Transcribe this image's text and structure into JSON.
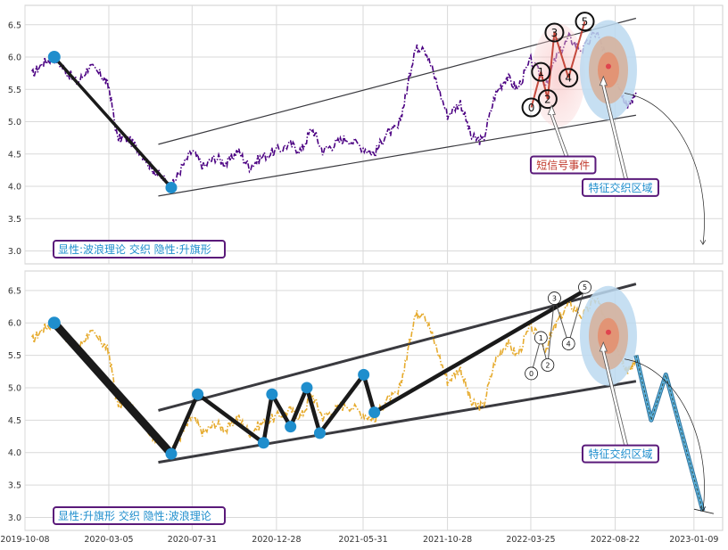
{
  "chart_data": [
    {
      "type": "line",
      "panel": "top",
      "annotation_box": "显性:波浪理论 交织 隐性:升旗形",
      "ylim": [
        2.8,
        6.8
      ],
      "ytick_labels": [
        "3.0",
        "3.5",
        "4.0",
        "4.5",
        "5.0",
        "5.5",
        "6.0",
        "6.5"
      ],
      "xlim": [
        "2019-10-08",
        "2023-03-01"
      ],
      "price_series": {
        "color": "#4b0082",
        "style": "dash-dot",
        "points": [
          [
            "2019-10-20",
            5.72
          ],
          [
            "2019-11-10",
            5.92
          ],
          [
            "2019-11-29",
            6.0
          ],
          [
            "2019-12-20",
            5.78
          ],
          [
            "2020-01-10",
            5.6
          ],
          [
            "2020-01-30",
            5.86
          ],
          [
            "2020-02-20",
            5.72
          ],
          [
            "2020-03-05",
            5.55
          ],
          [
            "2020-03-20",
            4.75
          ],
          [
            "2020-04-10",
            4.72
          ],
          [
            "2020-04-30",
            4.55
          ],
          [
            "2020-05-20",
            4.28
          ],
          [
            "2020-06-10",
            4.12
          ],
          [
            "2020-06-24",
            3.98
          ],
          [
            "2020-07-10",
            4.25
          ],
          [
            "2020-07-31",
            4.55
          ],
          [
            "2020-08-20",
            4.3
          ],
          [
            "2020-09-10",
            4.45
          ],
          [
            "2020-10-01",
            4.35
          ],
          [
            "2020-10-20",
            4.55
          ],
          [
            "2020-11-10",
            4.3
          ],
          [
            "2020-12-01",
            4.45
          ],
          [
            "2020-12-28",
            4.55
          ],
          [
            "2021-01-20",
            4.65
          ],
          [
            "2021-02-10",
            4.55
          ],
          [
            "2021-03-01",
            4.9
          ],
          [
            "2021-03-20",
            4.55
          ],
          [
            "2021-04-10",
            4.65
          ],
          [
            "2021-05-01",
            4.75
          ],
          [
            "2021-05-31",
            4.6
          ],
          [
            "2021-06-20",
            4.5
          ],
          [
            "2021-07-10",
            4.8
          ],
          [
            "2021-08-01",
            4.9
          ],
          [
            "2021-08-15",
            5.4
          ],
          [
            "2021-08-30",
            6.1
          ],
          [
            "2021-09-15",
            6.2
          ],
          [
            "2021-10-05",
            5.7
          ],
          [
            "2021-10-28",
            5.1
          ],
          [
            "2021-11-20",
            5.3
          ],
          [
            "2021-12-10",
            4.75
          ],
          [
            "2021-12-30",
            4.7
          ],
          [
            "2022-01-20",
            5.4
          ],
          [
            "2022-02-10",
            5.7
          ],
          [
            "2022-03-01",
            5.5
          ],
          [
            "2022-03-25",
            5.95
          ],
          [
            "2022-04-20",
            5.6
          ],
          [
            "2022-05-10",
            6.0
          ],
          [
            "2022-06-01",
            6.3
          ],
          [
            "2022-06-25",
            6.1
          ],
          [
            "2022-07-20",
            6.4
          ],
          [
            "2022-08-10",
            5.9
          ],
          [
            "2022-08-22",
            5.75
          ],
          [
            "2022-09-05",
            5.4
          ],
          [
            "2022-09-15",
            5.25
          ],
          [
            "2022-09-28",
            5.45
          ]
        ]
      },
      "trend_path": {
        "color": "#000000",
        "points": [
          [
            "2019-11-29",
            6.0
          ],
          [
            "2020-06-24",
            3.98
          ]
        ]
      },
      "marker_color": "#1f8ecd",
      "channel_lines": [
        {
          "from": [
            "2020-06-01",
            4.65
          ],
          "to": [
            "2022-09-28",
            6.6
          ]
        },
        {
          "from": [
            "2020-06-01",
            3.85
          ],
          "to": [
            "2022-09-28",
            5.1
          ]
        }
      ],
      "wave_points": [
        {
          "label": "0",
          "x": "2022-03-26",
          "y": 5.22
        },
        {
          "label": "1",
          "x": "2022-04-12",
          "y": 5.77
        },
        {
          "label": "2",
          "x": "2022-04-24",
          "y": 5.35
        },
        {
          "label": "3",
          "x": "2022-05-06",
          "y": 6.38
        },
        {
          "label": "4",
          "x": "2022-05-31",
          "y": 5.68
        },
        {
          "label": "5",
          "x": "2022-06-29",
          "y": 6.55
        }
      ],
      "callouts": [
        {
          "text": "短信号事件",
          "color": "#c0392b",
          "box_x": "2022-03-25",
          "box_y": 4.2,
          "point_x": "2022-05-01",
          "point_y": 5.25
        },
        {
          "text": "特征交织区域",
          "color": "#1f8ecd",
          "box_x": "2022-06-25",
          "box_y": 3.85,
          "point_x": "2022-08-01",
          "point_y": 5.7
        }
      ],
      "focus_region_center": [
        "2022-08-10",
        5.8
      ],
      "arrow_curve_end": [
        "2023-01-25",
        3.1
      ]
    },
    {
      "type": "line",
      "panel": "bottom",
      "annotation_box": "显性:升旗形 交织 隐性:波浪理论",
      "ylim": [
        2.8,
        6.8
      ],
      "ytick_labels": [
        "3.0",
        "3.5",
        "4.0",
        "4.5",
        "5.0",
        "5.5",
        "6.0",
        "6.5"
      ],
      "xlim": [
        "2019-10-08",
        "2023-03-01"
      ],
      "xtick_labels": [
        "2019-10-08",
        "2020-03-05",
        "2020-07-31",
        "2020-12-28",
        "2021-05-31",
        "2021-10-28",
        "2022-03-25",
        "2022-08-22",
        "2023-01-09"
      ],
      "price_series": {
        "color": "#e6ab2e",
        "style": "dash-dot",
        "points": [
          [
            "2019-10-20",
            5.72
          ],
          [
            "2019-11-10",
            5.92
          ],
          [
            "2019-11-29",
            6.0
          ],
          [
            "2019-12-20",
            5.78
          ],
          [
            "2020-01-10",
            5.6
          ],
          [
            "2020-01-30",
            5.86
          ],
          [
            "2020-02-20",
            5.72
          ],
          [
            "2020-03-05",
            5.55
          ],
          [
            "2020-03-20",
            4.75
          ],
          [
            "2020-04-10",
            4.72
          ],
          [
            "2020-04-30",
            4.55
          ],
          [
            "2020-05-20",
            4.28
          ],
          [
            "2020-06-10",
            4.12
          ],
          [
            "2020-06-24",
            3.98
          ],
          [
            "2020-07-10",
            4.25
          ],
          [
            "2020-07-31",
            4.55
          ],
          [
            "2020-08-20",
            4.3
          ],
          [
            "2020-09-10",
            4.45
          ],
          [
            "2020-10-01",
            4.35
          ],
          [
            "2020-10-20",
            4.55
          ],
          [
            "2020-11-10",
            4.3
          ],
          [
            "2020-12-01",
            4.45
          ],
          [
            "2020-12-28",
            4.55
          ],
          [
            "2021-01-20",
            4.65
          ],
          [
            "2021-02-10",
            4.55
          ],
          [
            "2021-03-01",
            4.9
          ],
          [
            "2021-03-20",
            4.55
          ],
          [
            "2021-04-10",
            4.65
          ],
          [
            "2021-05-01",
            4.75
          ],
          [
            "2021-05-31",
            4.6
          ],
          [
            "2021-06-20",
            4.5
          ],
          [
            "2021-07-10",
            4.8
          ],
          [
            "2021-08-01",
            4.9
          ],
          [
            "2021-08-15",
            5.4
          ],
          [
            "2021-08-30",
            6.1
          ],
          [
            "2021-09-15",
            6.2
          ],
          [
            "2021-10-05",
            5.7
          ],
          [
            "2021-10-28",
            5.1
          ],
          [
            "2021-11-20",
            5.3
          ],
          [
            "2021-12-10",
            4.75
          ],
          [
            "2021-12-30",
            4.7
          ],
          [
            "2022-01-20",
            5.4
          ],
          [
            "2022-02-10",
            5.7
          ],
          [
            "2022-03-01",
            5.5
          ],
          [
            "2022-03-25",
            5.95
          ],
          [
            "2022-04-20",
            5.6
          ],
          [
            "2022-05-10",
            6.0
          ],
          [
            "2022-06-01",
            6.3
          ],
          [
            "2022-06-25",
            6.1
          ],
          [
            "2022-07-20",
            6.4
          ],
          [
            "2022-08-10",
            5.9
          ],
          [
            "2022-08-22",
            5.75
          ],
          [
            "2022-09-05",
            5.4
          ],
          [
            "2022-09-15",
            5.25
          ],
          [
            "2022-09-28",
            5.45
          ]
        ]
      },
      "trend_path": {
        "color": "#000000",
        "points": [
          [
            "2019-11-29",
            6.0
          ],
          [
            "2020-06-24",
            3.98
          ],
          [
            "2020-08-10",
            4.9
          ],
          [
            "2020-12-05",
            4.15
          ],
          [
            "2020-12-20",
            4.9
          ],
          [
            "2021-01-22",
            4.4
          ],
          [
            "2021-02-20",
            5.0
          ],
          [
            "2021-03-15",
            4.3
          ],
          [
            "2021-06-01",
            5.2
          ],
          [
            "2021-06-20",
            4.62
          ],
          [
            "2022-06-29",
            6.5
          ]
        ]
      },
      "marker_color": "#1f8ecd",
      "channel_lines": [
        {
          "from": [
            "2020-06-01",
            4.65
          ],
          "to": [
            "2022-09-28",
            6.6
          ]
        },
        {
          "from": [
            "2020-06-01",
            3.85
          ],
          "to": [
            "2022-09-28",
            5.1
          ]
        }
      ],
      "wave_points": [
        {
          "label": "0",
          "x": "2022-03-26",
          "y": 5.22
        },
        {
          "label": "1",
          "x": "2022-04-12",
          "y": 5.77
        },
        {
          "label": "2",
          "x": "2022-04-24",
          "y": 5.35
        },
        {
          "label": "3",
          "x": "2022-05-06",
          "y": 6.38
        },
        {
          "label": "4",
          "x": "2022-05-31",
          "y": 5.68
        },
        {
          "label": "5",
          "x": "2022-06-29",
          "y": 6.55
        }
      ],
      "projection": {
        "points": [
          [
            "2022-09-28",
            5.5
          ],
          [
            "2022-10-25",
            4.5
          ],
          [
            "2022-11-20",
            5.2
          ],
          [
            "2023-01-25",
            3.1
          ]
        ]
      },
      "callouts": [
        {
          "text": "特征交织区域",
          "color": "#1f8ecd",
          "box_x": "2022-06-25",
          "box_y": 3.85,
          "point_x": "2022-08-01",
          "point_y": 5.7
        }
      ],
      "focus_region_center": [
        "2022-08-10",
        5.8
      ],
      "arrow_curve_end": [
        "2023-01-25",
        3.1
      ]
    }
  ]
}
